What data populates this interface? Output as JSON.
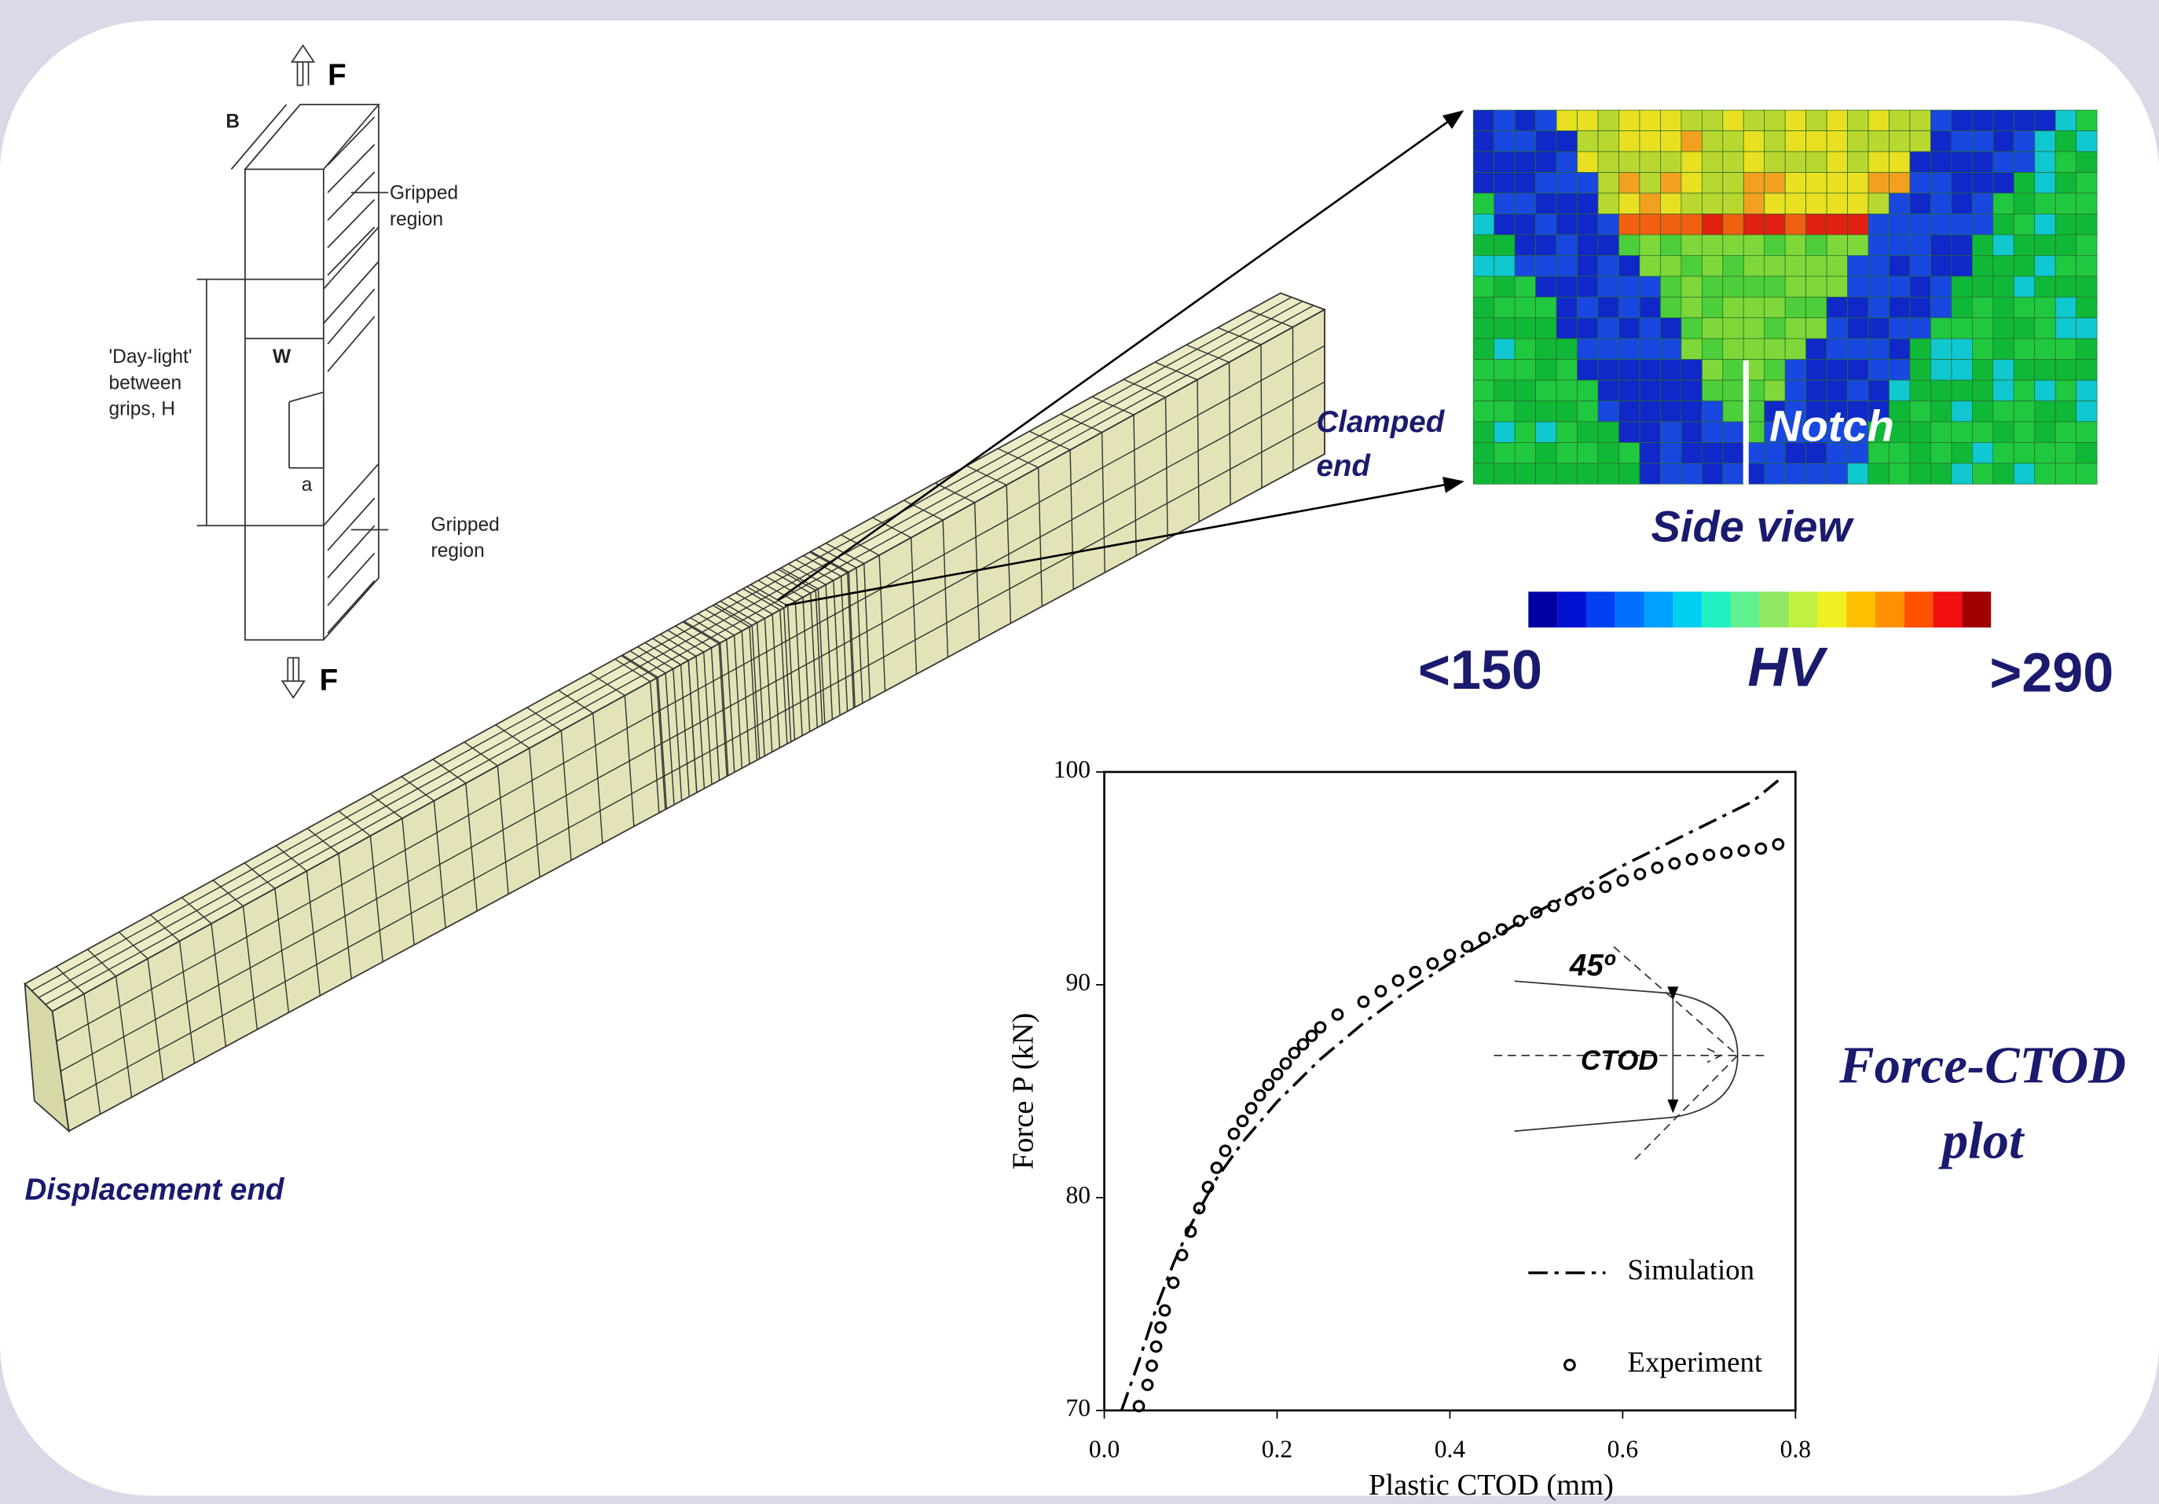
{
  "labels": {
    "force_top": "F",
    "b": "B",
    "gripped_top": [
      "Gripped",
      "region"
    ],
    "daylight": [
      "'Day-light'",
      "between",
      "grips, H"
    ],
    "w": "W",
    "a": "a",
    "gripped_bottom": [
      "Gripped",
      "region"
    ],
    "force_bottom": "F",
    "displacement_end": "Displacement end",
    "clamped_end": [
      "Clamped",
      "end"
    ],
    "notch": "Notch",
    "side_view": "Side view",
    "colorbar_min": "<150",
    "colorbar_unit": "HV",
    "colorbar_max": ">290",
    "plot_caption": [
      "Force-CTOD",
      "plot"
    ]
  },
  "chart_data": {
    "type": "line",
    "x_label": "Plastic CTOD (mm)",
    "y_label": "Force P (kN)",
    "xlim": [
      0,
      0.8
    ],
    "ylim": [
      70,
      100
    ],
    "xticks": [
      {
        "value": 0,
        "label": "0.0"
      },
      0.2,
      0.4,
      0.6,
      0.8
    ],
    "yticks": [
      70,
      80,
      90,
      100
    ],
    "legend": "lower right",
    "annotations": [
      "45º",
      "CTOD"
    ],
    "series": [
      {
        "name": "Simulation",
        "style": "dash-dot",
        "color": "#000000",
        "x": [
          0.02,
          0.04,
          0.06,
          0.08,
          0.1,
          0.13,
          0.16,
          0.2,
          0.25,
          0.3,
          0.35,
          0.4,
          0.45,
          0.5,
          0.55,
          0.6,
          0.65,
          0.7,
          0.75,
          0.78
        ],
        "values": [
          70,
          72.3,
          74.8,
          76.9,
          78.7,
          80.9,
          82.6,
          84.5,
          86.5,
          88.2,
          89.7,
          91.0,
          92.2,
          93.4,
          94.5,
          95.6,
          96.6,
          97.6,
          98.6,
          99.6
        ]
      },
      {
        "name": "Experiment",
        "style": "circles",
        "color": "#000000",
        "x": [
          0.04,
          0.05,
          0.055,
          0.06,
          0.065,
          0.07,
          0.08,
          0.09,
          0.1,
          0.11,
          0.12,
          0.13,
          0.14,
          0.15,
          0.16,
          0.17,
          0.18,
          0.19,
          0.2,
          0.21,
          0.22,
          0.23,
          0.24,
          0.25,
          0.27,
          0.3,
          0.32,
          0.34,
          0.36,
          0.38,
          0.4,
          0.42,
          0.44,
          0.46,
          0.48,
          0.5,
          0.52,
          0.54,
          0.56,
          0.58,
          0.6,
          0.62,
          0.64,
          0.66,
          0.68,
          0.7,
          0.72,
          0.74,
          0.76,
          0.78
        ],
        "values": [
          70.2,
          71.2,
          72.1,
          73.0,
          73.9,
          74.7,
          76.0,
          77.3,
          78.4,
          79.5,
          80.5,
          81.4,
          82.2,
          83.0,
          83.6,
          84.2,
          84.8,
          85.3,
          85.8,
          86.3,
          86.8,
          87.2,
          87.6,
          88.0,
          88.6,
          89.2,
          89.7,
          90.2,
          90.6,
          91.0,
          91.4,
          91.8,
          92.2,
          92.6,
          93.0,
          93.4,
          93.7,
          94.0,
          94.3,
          94.6,
          94.9,
          95.2,
          95.5,
          95.7,
          95.9,
          96.1,
          96.2,
          96.3,
          96.4,
          96.6
        ]
      }
    ]
  }
}
